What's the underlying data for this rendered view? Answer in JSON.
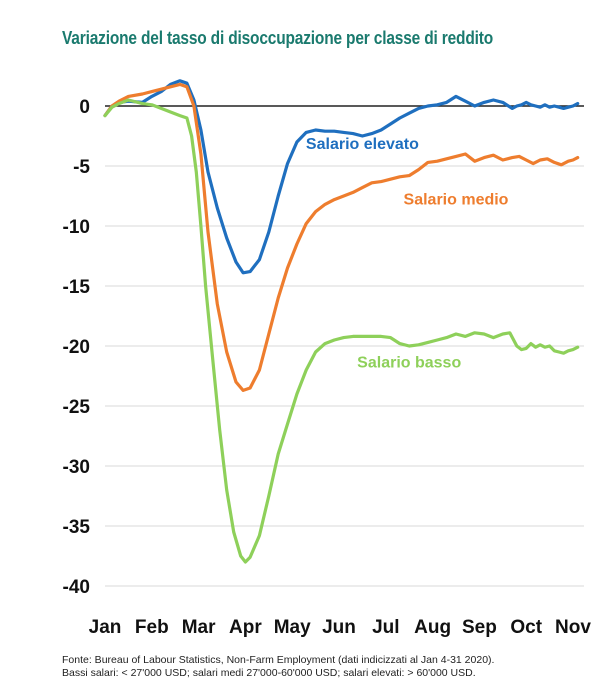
{
  "chart_data": {
    "type": "line",
    "title": "Variazione del tasso di disoccupazione per classe di reddito",
    "xlabel": "",
    "ylabel": "",
    "x_ticks": [
      "Jan",
      "Feb",
      "Mar",
      "Apr",
      "May",
      "Jun",
      "Jul",
      "Aug",
      "Sep",
      "Oct",
      "Nov"
    ],
    "y_ticks": [
      0,
      -5,
      -10,
      -15,
      -20,
      -25,
      -30,
      -35,
      -40
    ],
    "ylim": [
      -40.5,
      3
    ],
    "xlim": [
      0,
      10.15
    ],
    "grid": "horizontal",
    "series": [
      {
        "name": "Salario elevato",
        "color": "#1f6fbf",
        "x": [
          0,
          0.15,
          0.3,
          0.5,
          0.8,
          1.0,
          1.2,
          1.4,
          1.6,
          1.75,
          1.9,
          2.05,
          2.2,
          2.4,
          2.6,
          2.8,
          2.95,
          3.1,
          3.3,
          3.5,
          3.7,
          3.9,
          4.1,
          4.3,
          4.5,
          4.7,
          4.9,
          5.1,
          5.3,
          5.5,
          5.7,
          5.9,
          6.1,
          6.3,
          6.5,
          6.7,
          6.9,
          7.1,
          7.3,
          7.5,
          7.7,
          7.9,
          8.1,
          8.3,
          8.5,
          8.7,
          8.8,
          8.9,
          9.0,
          9.1,
          9.2,
          9.3,
          9.4,
          9.5,
          9.6,
          9.7,
          9.8,
          9.9,
          10.0,
          10.1
        ],
        "values": [
          -0.8,
          0.0,
          0.3,
          0.4,
          0.3,
          0.8,
          1.2,
          1.8,
          2.1,
          1.9,
          0.5,
          -2.0,
          -5.5,
          -8.5,
          -11.0,
          -13.0,
          -13.9,
          -13.8,
          -12.8,
          -10.5,
          -7.5,
          -4.8,
          -3.0,
          -2.2,
          -2.0,
          -2.1,
          -2.1,
          -2.2,
          -2.3,
          -2.5,
          -2.3,
          -2.0,
          -1.5,
          -1.0,
          -0.6,
          -0.2,
          0.0,
          0.1,
          0.3,
          0.8,
          0.4,
          0.0,
          0.3,
          0.5,
          0.3,
          -0.2,
          0.0,
          0.1,
          0.3,
          0.1,
          0.0,
          -0.1,
          0.1,
          -0.1,
          0.0,
          -0.1,
          -0.2,
          -0.1,
          0.0,
          0.2
        ]
      },
      {
        "name": "Salario medio",
        "color": "#ee7d2e",
        "x": [
          0,
          0.15,
          0.3,
          0.5,
          0.8,
          1.0,
          1.2,
          1.4,
          1.6,
          1.75,
          1.9,
          2.05,
          2.2,
          2.4,
          2.6,
          2.8,
          2.95,
          3.1,
          3.3,
          3.5,
          3.7,
          3.9,
          4.1,
          4.3,
          4.5,
          4.7,
          4.9,
          5.1,
          5.3,
          5.5,
          5.7,
          5.9,
          6.1,
          6.3,
          6.5,
          6.7,
          6.9,
          7.1,
          7.3,
          7.5,
          7.7,
          7.9,
          8.1,
          8.3,
          8.5,
          8.7,
          8.85,
          9.0,
          9.15,
          9.3,
          9.45,
          9.6,
          9.75,
          9.9,
          10.0,
          10.1
        ],
        "values": [
          -0.8,
          0.0,
          0.4,
          0.8,
          1.0,
          1.2,
          1.4,
          1.6,
          1.8,
          1.6,
          0.0,
          -4.0,
          -10.5,
          -16.5,
          -20.5,
          -23.0,
          -23.7,
          -23.5,
          -22.0,
          -19.0,
          -16.0,
          -13.5,
          -11.5,
          -9.8,
          -8.8,
          -8.2,
          -7.8,
          -7.5,
          -7.2,
          -6.8,
          -6.4,
          -6.3,
          -6.1,
          -5.9,
          -5.8,
          -5.3,
          -4.7,
          -4.6,
          -4.4,
          -4.2,
          -4.0,
          -4.6,
          -4.3,
          -4.1,
          -4.5,
          -4.3,
          -4.2,
          -4.5,
          -4.8,
          -4.5,
          -4.4,
          -4.7,
          -4.9,
          -4.6,
          -4.5,
          -4.3
        ]
      },
      {
        "name": "Salario basso",
        "color": "#8ed05a",
        "x": [
          0,
          0.15,
          0.3,
          0.5,
          0.8,
          1.0,
          1.2,
          1.4,
          1.6,
          1.75,
          1.85,
          1.95,
          2.05,
          2.15,
          2.3,
          2.45,
          2.6,
          2.75,
          2.9,
          3.0,
          3.1,
          3.3,
          3.5,
          3.7,
          3.9,
          4.1,
          4.3,
          4.5,
          4.7,
          4.9,
          5.1,
          5.3,
          5.5,
          5.7,
          5.9,
          6.1,
          6.3,
          6.5,
          6.7,
          6.9,
          7.1,
          7.3,
          7.5,
          7.7,
          7.9,
          8.1,
          8.3,
          8.5,
          8.65,
          8.8,
          8.9,
          9.0,
          9.1,
          9.2,
          9.3,
          9.4,
          9.5,
          9.6,
          9.7,
          9.8,
          9.9,
          10.0,
          10.1
        ],
        "values": [
          -0.8,
          -0.1,
          0.2,
          0.5,
          0.2,
          0.1,
          -0.2,
          -0.5,
          -0.8,
          -1.0,
          -2.5,
          -5.5,
          -10.0,
          -15.0,
          -21.0,
          -27.0,
          -32.0,
          -35.5,
          -37.5,
          -38.0,
          -37.6,
          -35.8,
          -32.5,
          -29.0,
          -26.5,
          -24.0,
          -22.0,
          -20.5,
          -19.8,
          -19.5,
          -19.3,
          -19.2,
          -19.2,
          -19.2,
          -19.2,
          -19.3,
          -19.8,
          -20.0,
          -19.9,
          -19.7,
          -19.5,
          -19.3,
          -19.0,
          -19.2,
          -18.9,
          -19.0,
          -19.3,
          -19.0,
          -18.9,
          -20.0,
          -20.3,
          -20.2,
          -19.8,
          -20.1,
          -19.9,
          -20.1,
          -20.0,
          -20.4,
          -20.5,
          -20.6,
          -20.4,
          -20.3,
          -20.1
        ]
      }
    ],
    "annotations": [
      {
        "text": "Salario elevato",
        "x": 5.5,
        "y": -3.6
      },
      {
        "text": "Salario medio",
        "x": 7.5,
        "y": -8.2
      },
      {
        "text": "Salario basso",
        "x": 6.5,
        "y": -21.8
      }
    ]
  },
  "footnote": {
    "line1": "Fonte: Bureau of Labour Statistics, Non-Farm Employment (dati indicizzati al Jan 4-31 2020).",
    "line2": "Bassi salari: < 27'000 USD; salari medi 27'000-60'000 USD; salari elevati: > 60'000 USD."
  }
}
